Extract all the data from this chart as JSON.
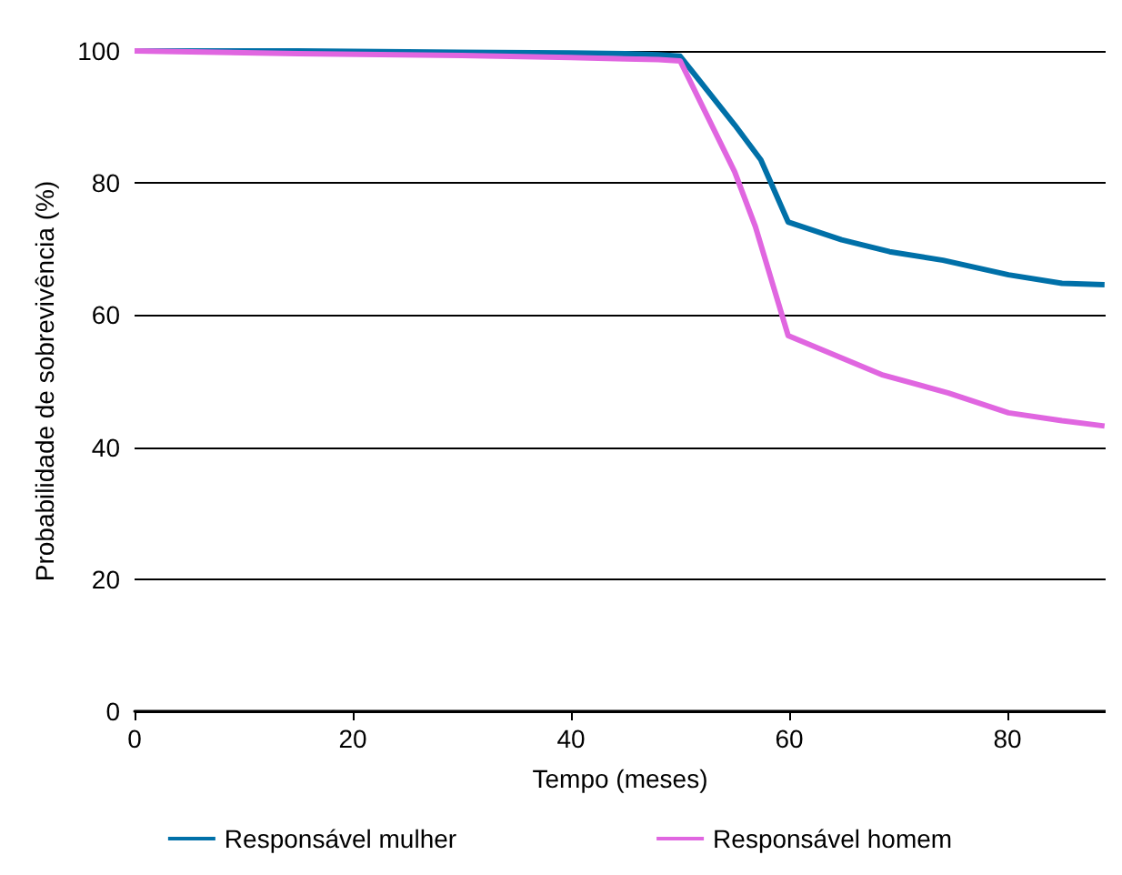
{
  "chart_data": {
    "type": "line",
    "xlabel": "Tempo (meses)",
    "ylabel": "Probabilidade de sobrevivência (%)",
    "xlim": [
      0,
      89
    ],
    "xticks": [
      0,
      20,
      40,
      60,
      80
    ],
    "ylim": [
      0,
      100
    ],
    "yticks": [
      0,
      20,
      40,
      60,
      80,
      100
    ],
    "grid": "y",
    "legend": "bottom",
    "marker": "none",
    "line_style": "solid",
    "series": [
      {
        "name": "Responsável mulher",
        "color": "#0070a8",
        "x": [
          0,
          15,
          30,
          40,
          45,
          48,
          50,
          55,
          57.4,
          59.9,
          64.8,
          69.2,
          74.1,
          80.1,
          85,
          88.9
        ],
        "values": [
          100,
          100,
          99.8,
          99.7,
          99.6,
          99.4,
          99.2,
          88.8,
          83.5,
          74.1,
          71.4,
          69.6,
          68.3,
          66.1,
          64.8,
          64.6
        ]
      },
      {
        "name": "Responsável homem",
        "color": "#e066e0",
        "x": [
          0,
          15,
          30,
          40,
          45,
          48,
          50,
          55,
          56.9,
          59.9,
          63.2,
          68.6,
          74.6,
          80.1,
          85,
          88.9
        ],
        "values": [
          100,
          99.6,
          99.3,
          99,
          98.8,
          98.7,
          98.5,
          81.7,
          73.4,
          56.9,
          54.6,
          50.9,
          48.2,
          45.2,
          44,
          43.2
        ]
      }
    ]
  }
}
